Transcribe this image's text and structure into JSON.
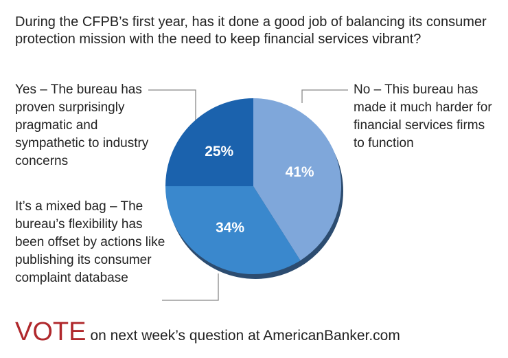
{
  "chart_data": {
    "type": "pie",
    "title": "During the CFPB’s first year, has it done a good job of balancing its consumer protection mission with the need to keep financial services vibrant?",
    "categories": [
      "No – This bureau has made it much harder for financial services firms to function",
      "It’s a mixed bag – The bureau’s flexibility has been offset by actions like publishing its consumer complaint database",
      "Yes – The bureau has proven surprisingly pragmatic and sympathetic to industry concerns"
    ],
    "values": [
      41,
      34,
      25
    ],
    "value_labels": [
      "41%",
      "34%",
      "25%"
    ],
    "colors": [
      "#7fa7da",
      "#3a88cd",
      "#1b62ad"
    ],
    "vote_word": "VOTE",
    "vote_text": "on next week’s question at AmericanBanker.com"
  }
}
